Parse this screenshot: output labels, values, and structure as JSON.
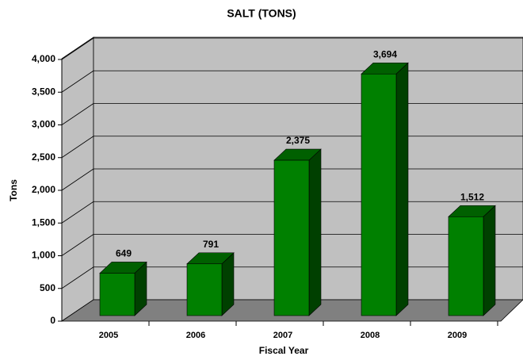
{
  "chart_data": {
    "type": "bar3d",
    "title": "SALT (TONS)",
    "xlabel": "Fiscal Year",
    "ylabel": "Tons",
    "categories": [
      "2005",
      "2006",
      "2007",
      "2008",
      "2009"
    ],
    "values": [
      649,
      791,
      2375,
      3694,
      1512
    ],
    "value_labels": [
      "649",
      "791",
      "2,375",
      "3,694",
      "1,512"
    ],
    "color": "#008000",
    "ylim": [
      0,
      4000
    ],
    "yticks": [
      0,
      500,
      {
        "value": 1000,
        "label": "1,000"
      },
      {
        "value": 1500,
        "label": "1,500"
      },
      {
        "value": 2000,
        "label": "2,000"
      },
      {
        "value": 2500,
        "label": "2,500"
      },
      {
        "value": 3000,
        "label": "3,000"
      },
      {
        "value": 3500,
        "label": "3,500"
      },
      {
        "value": 4000,
        "label": "4,000"
      }
    ],
    "grid": true
  }
}
